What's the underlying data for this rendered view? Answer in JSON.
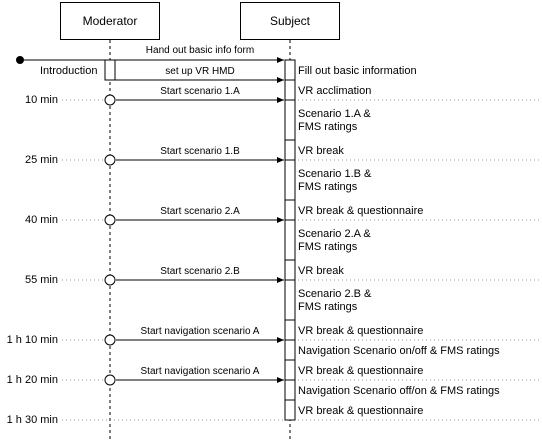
{
  "participants": {
    "moderator": "Moderator",
    "subject": "Subject"
  },
  "intro": {
    "label": "Introduction",
    "msg1": "Hand out basic info form",
    "msg2": "set up VR HMD"
  },
  "timestamps": [
    "10 min",
    "25 min",
    "40 min",
    "55 min",
    "1 h 10 min",
    "1 h 20 min",
    "1 h 30 min"
  ],
  "messages": [
    "Start scenario 1.A",
    "Start scenario 1.B",
    "Start scenario 2.A",
    "Start scenario 2.B",
    "Start navigation scenario A",
    "Start navigation scenario A"
  ],
  "subject_activities": [
    "Fill out basic information",
    "VR acclimation",
    "Scenario 1.A & FMS ratings",
    "VR break",
    "Scenario 1.B & FMS ratings",
    "VR break & questionnaire",
    "Scenario 2.A & FMS ratings",
    "VR break",
    "Scenario 2.B & FMS ratings",
    "VR break & questionnaire",
    "Navigation Scenario on/off & FMS ratings",
    "VR break & questionnaire",
    "Navigation Scenario off/on & FMS ratings",
    "VR break & questionnaire"
  ]
}
